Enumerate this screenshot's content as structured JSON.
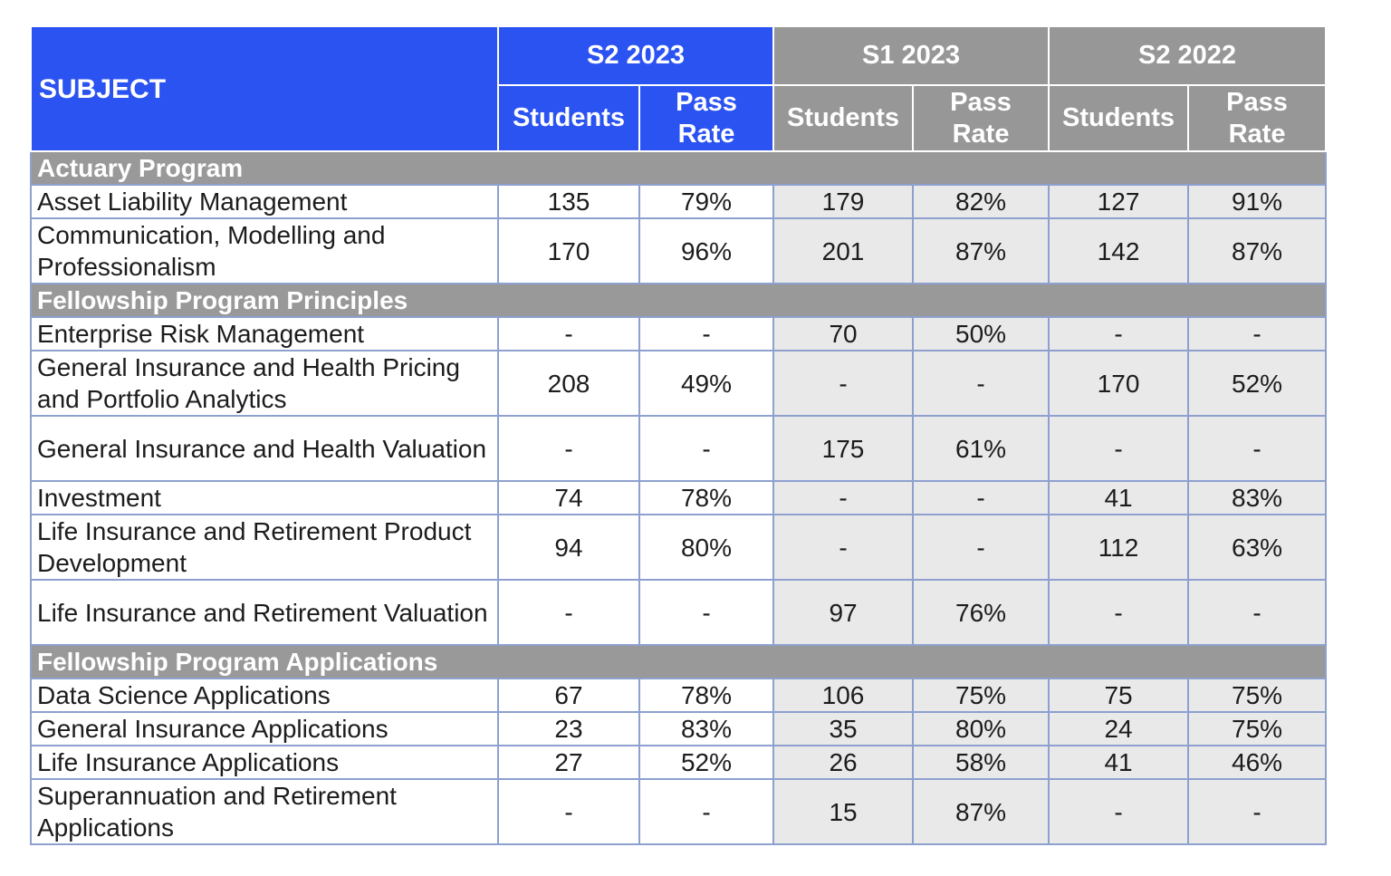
{
  "chart_data": {
    "type": "table",
    "subject_header": "SUBJECT",
    "semesters": [
      "S2 2023",
      "S1 2023",
      "S2 2022"
    ],
    "metric_headers": [
      "Students",
      "Pass Rate"
    ],
    "sections": [
      {
        "title": "Actuary Program",
        "rows": [
          {
            "subject": "Asset Liability Management",
            "values": [
              "135",
              "79%",
              "179",
              "82%",
              "127",
              "91%"
            ]
          },
          {
            "subject": "Communication, Modelling and Professionalism",
            "values": [
              "170",
              "96%",
              "201",
              "87%",
              "142",
              "87%"
            ]
          }
        ]
      },
      {
        "title": "Fellowship Program Principles",
        "rows": [
          {
            "subject": "Enterprise Risk Management",
            "values": [
              "-",
              "-",
              "70",
              "50%",
              "-",
              "-"
            ]
          },
          {
            "subject": "General Insurance and Health Pricing and Portfolio Analytics",
            "values": [
              "208",
              "49%",
              "-",
              "-",
              "170",
              "52%"
            ]
          },
          {
            "subject": "General Insurance and Health Valuation",
            "values": [
              "-",
              "-",
              "175",
              "61%",
              "-",
              "-"
            ]
          },
          {
            "subject": "Investment",
            "values": [
              "74",
              "78%",
              "-",
              "-",
              "41",
              "83%"
            ]
          },
          {
            "subject": "Life Insurance and Retirement Product Development",
            "values": [
              "94",
              "80%",
              "-",
              "-",
              "112",
              "63%"
            ]
          },
          {
            "subject": "Life Insurance and Retirement Valuation",
            "values": [
              "-",
              "-",
              "97",
              "76%",
              "-",
              "-"
            ]
          }
        ]
      },
      {
        "title": "Fellowship Program Applications",
        "rows": [
          {
            "subject": "Data Science Applications",
            "values": [
              "67",
              "78%",
              "106",
              "75%",
              "75",
              "75%"
            ]
          },
          {
            "subject": "General Insurance Applications",
            "values": [
              "23",
              "83%",
              "35",
              "80%",
              "24",
              "75%"
            ]
          },
          {
            "subject": "Life Insurance Applications",
            "values": [
              "27",
              "52%",
              "26",
              "58%",
              "41",
              "46%"
            ]
          },
          {
            "subject": "Superannuation and Retirement Applications",
            "values": [
              "-",
              "-",
              "15",
              "87%",
              "-",
              "-"
            ]
          }
        ]
      }
    ]
  },
  "colors": {
    "header_blue": "#2b53f2",
    "header_gray": "#979797",
    "section_band_gray": "#999999",
    "shaded_cell": "#e9e9e9",
    "white_cell": "#ffffff",
    "body_border": "#8da0cf",
    "header_border": "#ffffff",
    "header_text": "#ffffff",
    "body_text": "#1c1c1c"
  }
}
